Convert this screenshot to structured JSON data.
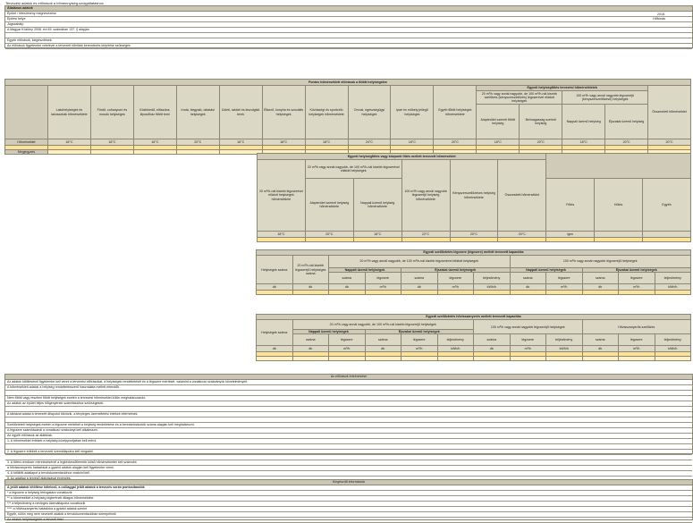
{
  "title": "Tervezési adatok és előírások a hőmennyiség-szolgáltatáshoz",
  "info": {
    "header": "Általános adatok",
    "rows": [
      "Épület / létesítmény megnevezése",
      "Építési helye",
      "Jogszabály:",
      "A Magyar Közlöny 2008. évi 45. számában 137. § alapján",
      "",
      "Egyéb előírások, kiegészítések:",
      "Az előírások figyelembe vételével a tervezett hőellátó berendezés kiépítése szükséges"
    ],
    "right": [
      "2018.",
      "Hőforrás"
    ]
  },
  "t1": {
    "title": "Pontos hőmérsékleti előírások a fűtött helyiségekre",
    "group": "Egyedi helyiségfűtés tervezési hőmérsékletek",
    "sub1": "20 m³/h vagy annál nagyobb, de 100 m³/h-nál kisebb szellőzés (kényszerszellőzés) légcserével ellátott helyiségek",
    "sub2": "100 m³/h vagy annál nagyobb légcseréjű (kényszerszellőzésű) helyiségek",
    "cols": [
      "Lakóhelyiségek és lakószobák hőmérséklete",
      "Fürdő, zuhanyozó és mosdó helyiségek",
      "Közlekedő, előszoba, lépcsőház fűtött terei",
      "Iroda, tárgyaló, oktatási helyiségek",
      "Üzleti, raktári és kiszolgáló terek",
      "Étkező, konyha és szociális helyiségek",
      "Közösségi és sportcélú helyiségek hőmérséklete",
      "Orvosi, egészségügyi helyiségek",
      "Ipari és műhely jellegű helyiségek",
      "Egyéb fűtött helyiségek hőmérséklete",
      "Alapterület szerinti fűtött helyiség",
      "Belmagasság szerinti helyiség",
      "Nappali üzemű helyiség",
      "Éjszakai üzemű helyiség",
      "Összesített hőmérséklet"
    ],
    "rowlabel": "Hőmérséklet",
    "values": [
      "18°C",
      "18°C",
      "16°C",
      "20°C",
      "16°C",
      "18°C",
      "18°C",
      "24°C",
      "16°C",
      "20°C",
      "18°C",
      "20°C",
      "18°C",
      "20°C",
      "20°C"
    ],
    "extra": "Megjegyzés"
  },
  "t2": {
    "title": "Egyedi helyiségfűtés vagy központi fűtés mellett tervezett hőmérséklet",
    "group": "20 m³/h vagy annál nagyobb, de 100 m³/h-nál kisebb légcserével ellátott helyiségek",
    "cols": [
      "20 m³/h-nál kisebb légcserével ellátott helyiségek hőmérséklete",
      "Alapterület szerinti helyiség hőmérséklete",
      "Nappali üzemű helyiség hőmérséklete",
      "100 m³/h vagy annál nagyobb légcseréjű helyiség hőmérséklete",
      "Kényszerszellőzéses helyiség hőmérséklete",
      "Összesített hőmérséklet",
      "Fűtés",
      "Hűtés",
      "Egyéb"
    ],
    "values": [
      "18°C",
      "20°C",
      "18°C",
      "22°C",
      "20°C",
      "20°C",
      "igen",
      "",
      ""
    ]
  },
  "t3": {
    "title": "Egyedi szellőztetés légcsere (légcsere) mellett tervezett kapacitás",
    "g1": "20 m³/h vagy annál nagyobb, de 100 m³/h-nál kisebb légcserével ellátott helyiségek",
    "g2": "100 m³/h vagy annál nagyobb légcseréjű helyiségek",
    "s": [
      "Nappali üzemű helyiségek",
      "Éjszakai üzemű helyiségek",
      "Nappali üzemű helyiségek",
      "Éjszakai üzemű helyiségek"
    ],
    "cols": [
      "Helyiségek száma",
      "20 m³/h-nál kisebb légcseréjű helyiségek száma",
      "száma",
      "légcsere",
      "száma",
      "légcsere",
      "teljesítmény",
      "száma",
      "légcsere",
      "száma",
      "légcsere",
      "teljesítmény"
    ],
    "units": [
      "db",
      "db",
      "db",
      "m³/h",
      "db",
      "m³/h",
      "kWh/h",
      "db",
      "m³/h",
      "db",
      "m³/h",
      "kWh/h"
    ]
  },
  "t4": {
    "title": "Egyedi szellőztetés hővisszanyerés mellett tervezett kapacitás",
    "g1": "20 m³/h vagy annál nagyobb, de 100 m³/h-nál kisebb légcseréjű helyiségek",
    "g2": "100 m³/h vagy annál nagyobb légcseréjű helyiségek",
    "g3": "Hővisszanyerős szellőzés",
    "s": [
      "Nappali üzemű helyiségek",
      "Éjszakai üzemű helyiségek"
    ],
    "cols": [
      "Helyiségek száma",
      "száma",
      "légcsere",
      "száma",
      "légcsere",
      "teljesítmény",
      "száma",
      "légcsere",
      "teljesítmény",
      "száma",
      "légcsere",
      "teljesítmény"
    ],
    "units": [
      "db",
      "db",
      "m³/h",
      "db",
      "m³/h",
      "kWh/h",
      "db",
      "m³/h",
      "kWh/h",
      "db",
      "m³/h",
      "kWh/h"
    ]
  },
  "notes": {
    "header": "Az előírások értelmezése",
    "lines": [
      "Az adatok kitöltésénél figyelembe kell venni a tervezési előírásokat, a helyiségek rendeltetését és a légcsere mértékét, valamint a vonatkozó szabványok követelményeit.",
      "A hőmérsékleti adatok a helyiség rendeltetésszerű használata mellett értendők.",
      "",
      "    Nem fűtött vagy részben fűtött helyiségek esetén a tervezési hőmérséklet külön meghatározandó.",
      "    Az adatok az épület teljes hőigényének számításához szükségesek.",
      "",
      "    A táblázat adatai a tervezett állapotot tükrözik, a tényleges üzemeltetési értékek eltérhetnek.",
      "",
      "Szellőztetett helyiségek esetén a légcsere mértékét a helyiség rendeltetése és a benntartózkodók száma alapján kell meghatározni.",
      "A légcsere számításánál a vonatkozó szabványt kell alkalmazni.",
      "Az egyéb előírások az alábbiak:",
      "1.    A hőmérséklet értékeit a helyiség középpontjában kell mérni.",
      "",
      "2.    A légcsere értékeit a tervezett üzemállapotra kell megadni.",
      "",
      "3.    A fűtési rendszer méretezésénél a legkedvezőtlenebb külső hőmérséklettel kell számolni.",
      "    a hővisszanyerés hatásfokát a gyártói adatok alapján kell figyelembe venni.",
      "4.    A kitöltött adatlapot a tervdokumentációhoz csatolni kell.",
      "5.    Az adatlap a tervező aláírásával érvényes."
    ]
  },
  "foot": {
    "header": "Kiegészítő információk",
    "lines": [
      "A jelölt adatok kitöltése kötelező, a csillaggal jelölt adatok a tervezés során pontosítandók",
      "* a légcsere a helyiség térfogatára vonatkozik",
      "** a hőmérséklet a helyiség légterének átlagos hőmérséklete",
      "*** a teljesítmény a névleges üzemállapotra vonatkozik",
      "**** a hővisszanyerés hatásfoka a gyártói adatok szerint",
      "Egyéb, külön meg nem nevezett adatok a tervdokumentációban szerepelnek",
      "Az adatok helyességéért a tervező felel"
    ]
  }
}
